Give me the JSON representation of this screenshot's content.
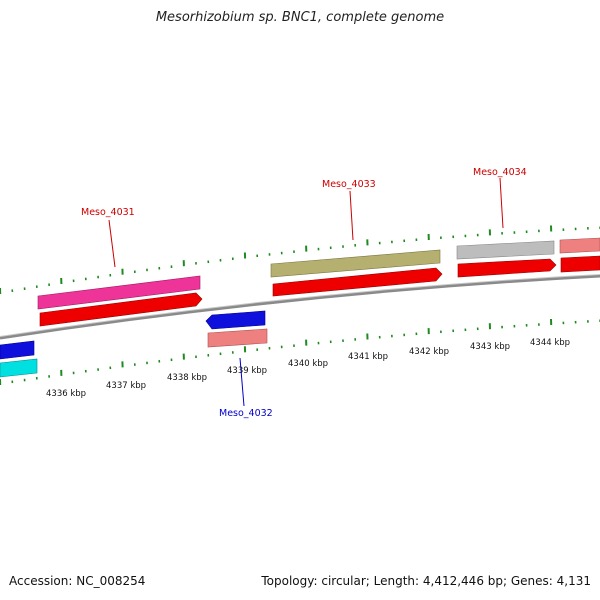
{
  "map": {
    "title": "Mesorhizobium sp. BNC1, complete genome",
    "accession": "Accession: NC_008254",
    "summary": "Topology: circular; Length: 4,412,446 bp; Genes: 4,131",
    "colors": {
      "backbone": "#8a8a8a",
      "tick": "#1f8a1f",
      "forward_label": "#cc0000",
      "reverse_label": "#0000cc",
      "cds_red": "#ee0000",
      "magenta": "#ee3399",
      "olive": "#b5b070",
      "grey": "#bdbdbd",
      "salmon": "#ee8080",
      "blue": "#1010dd",
      "cyan": "#00e0e0"
    },
    "scale_labels": [
      "4336 kbp",
      "4337 kbp",
      "4338 kbp",
      "4339 kbp",
      "4340 kbp",
      "4341 kbp",
      "4342 kbp",
      "4343 kbp",
      "4344 kbp"
    ],
    "gene_labels": [
      {
        "text": "Meso_4031",
        "strand": "forward"
      },
      {
        "text": "Meso_4033",
        "strand": "forward"
      },
      {
        "text": "Meso_4034",
        "strand": "forward"
      },
      {
        "text": "Meso_4032",
        "strand": "reverse"
      }
    ]
  }
}
